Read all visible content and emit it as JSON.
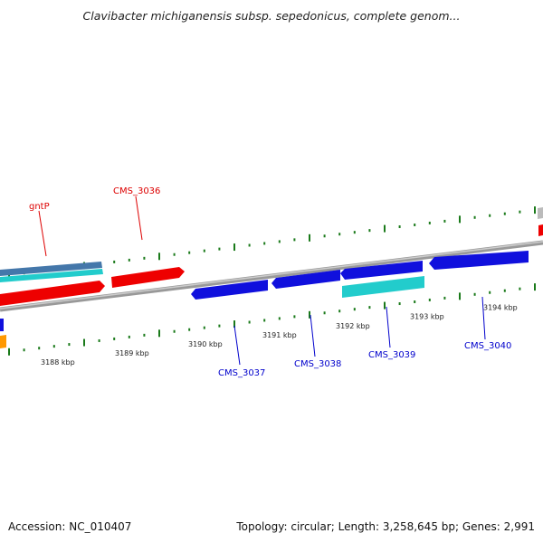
{
  "title": "Clavibacter michiganensis subsp. sepedonicus, complete genom...",
  "footer": {
    "accession": "Accession: NC_010407",
    "summary": "Topology: circular; Length: 3,258,645 bp; Genes: 2,991"
  },
  "colors": {
    "forward_gene": "#ee0000",
    "reverse_gene": "#1010dd",
    "rna_or_feature": "#22cccc",
    "other_feature": "#4477aa",
    "backbone": "#888888",
    "ticks": "#1a7a1a",
    "orange_feature": "#ff9900",
    "gray_feature": "#bbbbbb"
  },
  "ticks": [
    {
      "label": "3188 kbp"
    },
    {
      "label": "3189 kbp"
    },
    {
      "label": "3190 kbp"
    },
    {
      "label": "3191 kbp"
    },
    {
      "label": "3192 kbp"
    },
    {
      "label": "3193 kbp"
    },
    {
      "label": "3194 kbp"
    }
  ],
  "genes": [
    {
      "name": "gntP",
      "strand": "forward"
    },
    {
      "name": "CMS_3036",
      "strand": "forward"
    },
    {
      "name": "CMS_3037",
      "strand": "reverse"
    },
    {
      "name": "CMS_3038",
      "strand": "reverse"
    },
    {
      "name": "CMS_3039",
      "strand": "reverse"
    },
    {
      "name": "CMS_3040",
      "strand": "reverse"
    }
  ]
}
